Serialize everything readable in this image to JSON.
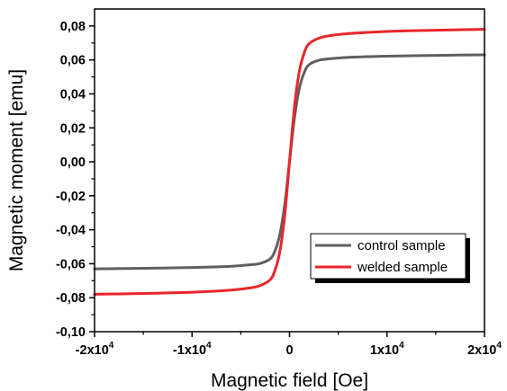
{
  "chart_data": {
    "type": "line",
    "title": "",
    "xlabel": "Magnetic field [Oe]",
    "ylabel": "Magnetic moment [emu]",
    "xlim": [
      -20000,
      20000
    ],
    "ylim": [
      -0.1,
      0.09
    ],
    "x_ticks": [
      {
        "value": -20000,
        "base": "-2x10",
        "exp": "4"
      },
      {
        "value": -10000,
        "base": "-1x10",
        "exp": "4"
      },
      {
        "value": 0,
        "base": "0",
        "exp": ""
      },
      {
        "value": 10000,
        "base": "1x10",
        "exp": "4"
      },
      {
        "value": 20000,
        "base": "2x10",
        "exp": "4"
      }
    ],
    "y_ticks": [
      {
        "value": -0.1,
        "label": "-0,10"
      },
      {
        "value": -0.08,
        "label": "-0,08"
      },
      {
        "value": -0.06,
        "label": "-0,06"
      },
      {
        "value": -0.04,
        "label": "-0,04"
      },
      {
        "value": -0.02,
        "label": "-0,02"
      },
      {
        "value": 0.0,
        "label": "0,00"
      },
      {
        "value": 0.02,
        "label": "0,02"
      },
      {
        "value": 0.04,
        "label": "0,04"
      },
      {
        "value": 0.06,
        "label": "0,06"
      },
      {
        "value": 0.08,
        "label": "0,08"
      }
    ],
    "grid": false,
    "legend_position": "bottom-right",
    "series": [
      {
        "name": "control sample",
        "color": "#5f5f5f",
        "x": [
          -20000,
          -15000,
          -10000,
          -6000,
          -4000,
          -3000,
          -2000,
          -1500,
          -1000,
          -500,
          0,
          500,
          1000,
          1500,
          2000,
          3000,
          4000,
          6000,
          10000,
          15000,
          20000
        ],
        "y": [
          -0.063,
          -0.0627,
          -0.0622,
          -0.0615,
          -0.0606,
          -0.0598,
          -0.0572,
          -0.0525,
          -0.043,
          -0.0255,
          0.0,
          0.0255,
          0.043,
          0.0525,
          0.0572,
          0.0598,
          0.0606,
          0.0615,
          0.0622,
          0.0627,
          0.063
        ]
      },
      {
        "name": "welded sample",
        "color": "#e8262b",
        "x": [
          -20000,
          -15000,
          -10000,
          -6000,
          -4000,
          -3000,
          -2000,
          -1500,
          -1000,
          -500,
          0,
          500,
          1000,
          1500,
          2000,
          3000,
          4000,
          6000,
          10000,
          15000,
          20000
        ],
        "y": [
          -0.078,
          -0.0775,
          -0.0768,
          -0.0755,
          -0.0742,
          -0.0728,
          -0.0695,
          -0.064,
          -0.053,
          -0.032,
          0.0,
          0.032,
          0.053,
          0.064,
          0.0695,
          0.0728,
          0.0742,
          0.0755,
          0.0768,
          0.0775,
          0.078
        ]
      }
    ]
  }
}
